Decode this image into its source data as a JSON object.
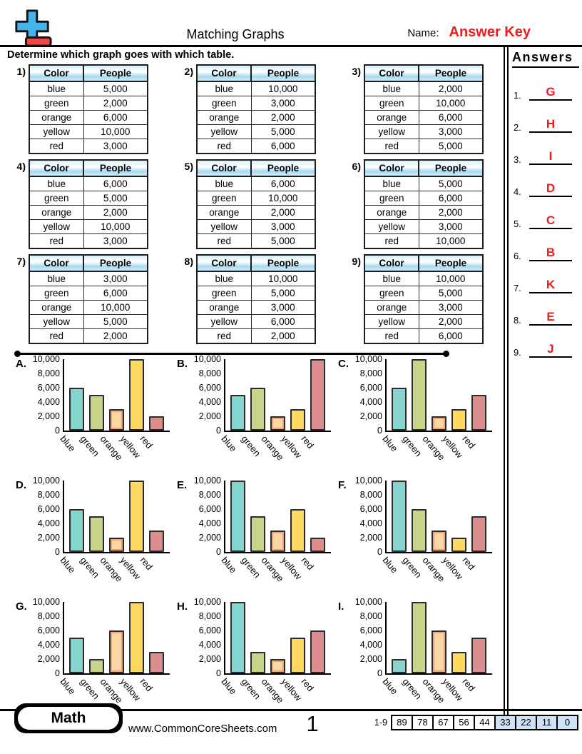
{
  "page": {
    "title": "Matching Graphs",
    "name_label": "Name:",
    "name_value": "Answer Key",
    "instruction": "Determine which graph goes with which table."
  },
  "answers": {
    "title": "Answers",
    "items": [
      {
        "num": "1.",
        "letter": "G"
      },
      {
        "num": "2.",
        "letter": "H"
      },
      {
        "num": "3.",
        "letter": "I"
      },
      {
        "num": "4.",
        "letter": "D"
      },
      {
        "num": "5.",
        "letter": "C"
      },
      {
        "num": "6.",
        "letter": "B"
      },
      {
        "num": "7.",
        "letter": "K"
      },
      {
        "num": "8.",
        "letter": "E"
      },
      {
        "num": "9.",
        "letter": "J"
      }
    ]
  },
  "table_headers": [
    "Color",
    "People"
  ],
  "tables": [
    {
      "num": "1)",
      "rows": [
        [
          "blue",
          "5,000"
        ],
        [
          "green",
          "2,000"
        ],
        [
          "orange",
          "6,000"
        ],
        [
          "yellow",
          "10,000"
        ],
        [
          "red",
          "3,000"
        ]
      ]
    },
    {
      "num": "2)",
      "rows": [
        [
          "blue",
          "10,000"
        ],
        [
          "green",
          "3,000"
        ],
        [
          "orange",
          "2,000"
        ],
        [
          "yellow",
          "5,000"
        ],
        [
          "red",
          "6,000"
        ]
      ]
    },
    {
      "num": "3)",
      "rows": [
        [
          "blue",
          "2,000"
        ],
        [
          "green",
          "10,000"
        ],
        [
          "orange",
          "6,000"
        ],
        [
          "yellow",
          "3,000"
        ],
        [
          "red",
          "5,000"
        ]
      ]
    },
    {
      "num": "4)",
      "rows": [
        [
          "blue",
          "6,000"
        ],
        [
          "green",
          "5,000"
        ],
        [
          "orange",
          "2,000"
        ],
        [
          "yellow",
          "10,000"
        ],
        [
          "red",
          "3,000"
        ]
      ]
    },
    {
      "num": "5)",
      "rows": [
        [
          "blue",
          "6,000"
        ],
        [
          "green",
          "10,000"
        ],
        [
          "orange",
          "2,000"
        ],
        [
          "yellow",
          "3,000"
        ],
        [
          "red",
          "5,000"
        ]
      ]
    },
    {
      "num": "6)",
      "rows": [
        [
          "blue",
          "5,000"
        ],
        [
          "green",
          "6,000"
        ],
        [
          "orange",
          "2,000"
        ],
        [
          "yellow",
          "3,000"
        ],
        [
          "red",
          "10,000"
        ]
      ]
    },
    {
      "num": "7)",
      "rows": [
        [
          "blue",
          "3,000"
        ],
        [
          "green",
          "6,000"
        ],
        [
          "orange",
          "10,000"
        ],
        [
          "yellow",
          "5,000"
        ],
        [
          "red",
          "2,000"
        ]
      ]
    },
    {
      "num": "8)",
      "rows": [
        [
          "blue",
          "10,000"
        ],
        [
          "green",
          "5,000"
        ],
        [
          "orange",
          "3,000"
        ],
        [
          "yellow",
          "6,000"
        ],
        [
          "red",
          "2,000"
        ]
      ]
    },
    {
      "num": "9)",
      "rows": [
        [
          "blue",
          "10,000"
        ],
        [
          "green",
          "5,000"
        ],
        [
          "orange",
          "3,000"
        ],
        [
          "yellow",
          "2,000"
        ],
        [
          "red",
          "6,000"
        ]
      ]
    }
  ],
  "chart_data": {
    "type": "bar",
    "categories": [
      "blue",
      "green",
      "orange",
      "yellow",
      "red"
    ],
    "series": [
      {
        "name": "A",
        "values": [
          6000,
          5000,
          3000,
          10000,
          2000
        ]
      },
      {
        "name": "B",
        "values": [
          5000,
          6000,
          2000,
          3000,
          10000
        ]
      },
      {
        "name": "C",
        "values": [
          6000,
          10000,
          2000,
          3000,
          5000
        ]
      },
      {
        "name": "D",
        "values": [
          6000,
          5000,
          2000,
          10000,
          3000
        ]
      },
      {
        "name": "E",
        "values": [
          10000,
          5000,
          3000,
          6000,
          2000
        ]
      },
      {
        "name": "F",
        "values": [
          10000,
          6000,
          3000,
          2000,
          5000
        ]
      },
      {
        "name": "G",
        "values": [
          5000,
          2000,
          6000,
          10000,
          3000
        ]
      },
      {
        "name": "H",
        "values": [
          10000,
          3000,
          2000,
          5000,
          6000
        ]
      },
      {
        "name": "I",
        "values": [
          2000,
          10000,
          6000,
          3000,
          5000
        ]
      }
    ],
    "ylim": [
      0,
      10000
    ],
    "yticks": [
      {
        "value": 0,
        "label": "0"
      },
      {
        "value": 2000,
        "label": "2,000"
      },
      {
        "value": 4000,
        "label": "4,000"
      },
      {
        "value": 6000,
        "label": "6,000"
      },
      {
        "value": 8000,
        "label": "8,000"
      },
      {
        "value": 10000,
        "label": "10,000"
      }
    ],
    "xlabel": "",
    "ylabel": "",
    "grid": false,
    "legend": false
  },
  "colors": {
    "answer_red": "#ee1c1c",
    "bars": {
      "blue": "#84d4cf",
      "green": "#c8d589",
      "orange": "#fdd8a7",
      "yellow": "#ffd95e",
      "red": "#dd8d8d"
    },
    "bar_border": "#2b2b2b",
    "orange_bar_inner": "#f9a06d",
    "table_header_blue": "#a5daf0",
    "score_cell_blue": "#cfe2f3",
    "logo_blue": "#45b5e7",
    "logo_red": "#f04848"
  },
  "footer": {
    "badge": "Math",
    "website": "www.CommonCoreSheets.com",
    "page_number": "1",
    "range_label": "1-9",
    "scores_white": [
      "89",
      "78",
      "67",
      "56",
      "44"
    ],
    "scores_blue": [
      "33",
      "22",
      "11",
      "0"
    ]
  }
}
